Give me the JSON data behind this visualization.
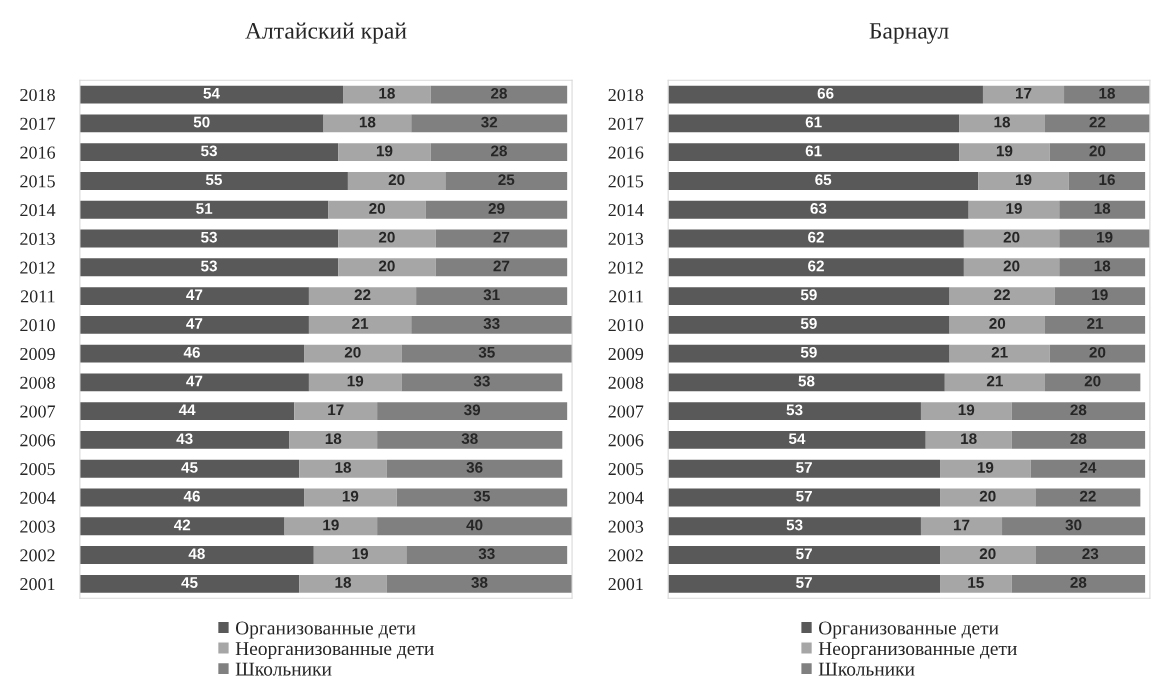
{
  "chart_data": [
    {
      "type": "bar",
      "title": "Алтайский край",
      "orientation": "horizontal",
      "stacked": true,
      "data_labels": true,
      "legend": "bottom",
      "grid": false,
      "tick_labels": "y",
      "categories": [
        "2018",
        "2017",
        "2016",
        "2015",
        "2014",
        "2013",
        "2012",
        "2011",
        "2010",
        "2009",
        "2008",
        "2007",
        "2006",
        "2005",
        "2004",
        "2003",
        "2002",
        "2001"
      ],
      "series": [
        {
          "name": "Организованные дети",
          "color": "#595959",
          "values": [
            54,
            50,
            53,
            55,
            51,
            53,
            53,
            47,
            47,
            46,
            47,
            44,
            43,
            45,
            46,
            42,
            48,
            45
          ]
        },
        {
          "name": "Неорганизованные дети",
          "color": "#a6a6a6",
          "values": [
            18,
            18,
            19,
            20,
            20,
            20,
            20,
            22,
            21,
            20,
            19,
            17,
            18,
            18,
            19,
            19,
            19,
            18
          ]
        },
        {
          "name": "Школьники",
          "color": "#808080",
          "values": [
            28,
            32,
            28,
            25,
            29,
            27,
            27,
            31,
            33,
            35,
            33,
            39,
            38,
            36,
            35,
            40,
            33,
            38
          ]
        }
      ]
    },
    {
      "type": "bar",
      "title": "Барнаул",
      "orientation": "horizontal",
      "stacked": true,
      "data_labels": true,
      "legend": "bottom",
      "grid": false,
      "tick_labels": "y",
      "categories": [
        "2018",
        "2017",
        "2016",
        "2015",
        "2014",
        "2013",
        "2012",
        "2011",
        "2010",
        "2009",
        "2008",
        "2007",
        "2006",
        "2005",
        "2004",
        "2003",
        "2002",
        "2001"
      ],
      "series": [
        {
          "name": "Организованные дети",
          "color": "#595959",
          "values": [
            66,
            61,
            61,
            65,
            63,
            62,
            62,
            59,
            59,
            59,
            58,
            53,
            54,
            57,
            57,
            53,
            57,
            57
          ]
        },
        {
          "name": "Неорганизованные дети",
          "color": "#a6a6a6",
          "values": [
            17,
            18,
            19,
            19,
            19,
            20,
            20,
            22,
            20,
            21,
            21,
            19,
            18,
            19,
            20,
            17,
            20,
            15
          ]
        },
        {
          "name": "Школьники",
          "color": "#808080",
          "values": [
            18,
            22,
            20,
            16,
            18,
            19,
            18,
            19,
            21,
            20,
            20,
            28,
            28,
            24,
            22,
            30,
            23,
            28
          ]
        }
      ]
    }
  ]
}
